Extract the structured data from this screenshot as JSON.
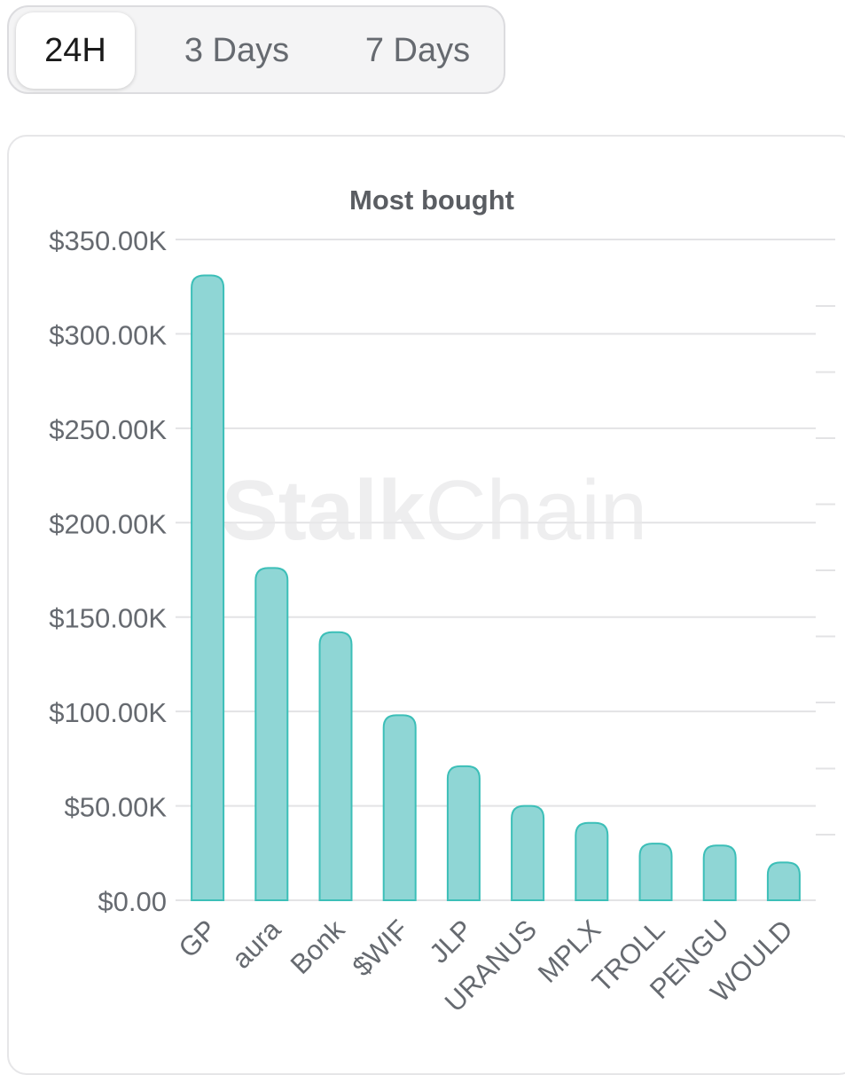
{
  "tabs": [
    {
      "label": "24H",
      "active": true
    },
    {
      "label": "3 Days",
      "active": false
    },
    {
      "label": "7 Days",
      "active": false
    }
  ],
  "watermark": {
    "bold": "Stalk",
    "light": "Chain"
  },
  "colors": {
    "bar_fill": "#8fd6d5",
    "bar_stroke": "#3cbfb8",
    "grid": "#e3e3e5",
    "text": "#666a70"
  },
  "chart_data": {
    "type": "bar",
    "title": "Most bought",
    "xlabel": "",
    "ylabel": "",
    "categories": [
      "GP",
      "aura",
      "Bonk",
      "$WIF",
      "JLP",
      "URANUS",
      "MPLX",
      "TROLL",
      "PENGU",
      "WOULD"
    ],
    "values": [
      331000,
      176000,
      142000,
      98000,
      71000,
      50000,
      41000,
      30000,
      29000,
      20000
    ],
    "ylim": [
      0,
      350000
    ],
    "yticks": [
      0,
      50000,
      100000,
      150000,
      200000,
      250000,
      300000,
      350000
    ],
    "ytick_labels": [
      "$0.00",
      "$50.00K",
      "$100.00K",
      "$150.00K",
      "$200.00K",
      "$250.00K",
      "$300.00K",
      "$350.00K"
    ],
    "grid": true,
    "legend": "none"
  }
}
